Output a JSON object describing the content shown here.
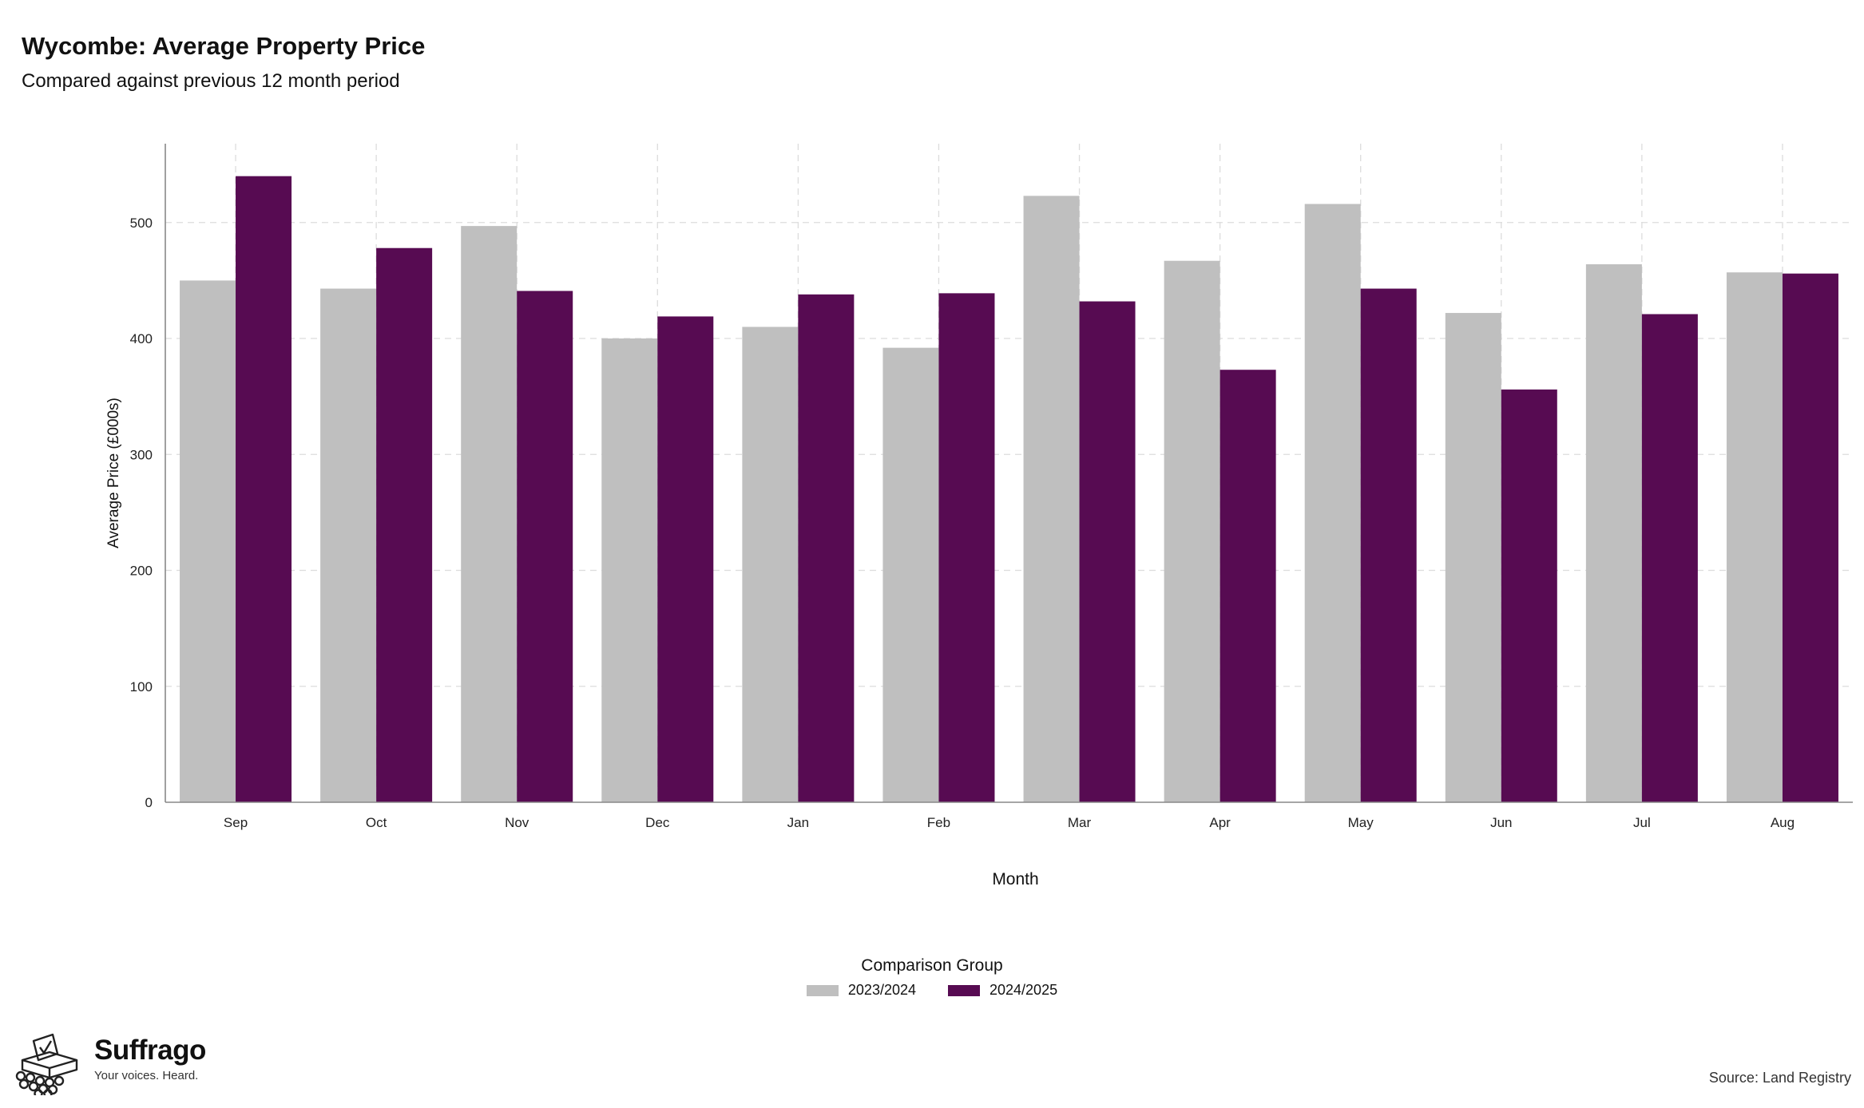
{
  "chart_data": {
    "type": "bar",
    "title": "Wycombe: Average Property Price",
    "subtitle": "Compared against previous 12 month period",
    "xlabel": "Month",
    "ylabel": "Average Price (£000s)",
    "categories": [
      "Sep",
      "Oct",
      "Nov",
      "Dec",
      "Jan",
      "Feb",
      "Mar",
      "Apr",
      "May",
      "Jun",
      "Jul",
      "Aug"
    ],
    "series": [
      {
        "name": "2023/2024",
        "color": "#bfbfbf",
        "values": [
          450,
          443,
          497,
          400,
          410,
          392,
          523,
          467,
          516,
          422,
          464,
          457
        ]
      },
      {
        "name": "2024/2025",
        "color": "#570b52",
        "values": [
          540,
          478,
          441,
          419,
          438,
          439,
          432,
          373,
          443,
          356,
          421,
          456
        ]
      }
    ],
    "ylim": [
      0,
      568
    ],
    "yticks": [
      0,
      100,
      200,
      300,
      400,
      500
    ],
    "grid": true,
    "legend": {
      "title": "Comparison Group",
      "position": "bottom"
    }
  },
  "footer": {
    "brand_name": "Suffrago",
    "brand_tagline": "Your voices. Heard.",
    "source": "Source: Land Registry"
  }
}
